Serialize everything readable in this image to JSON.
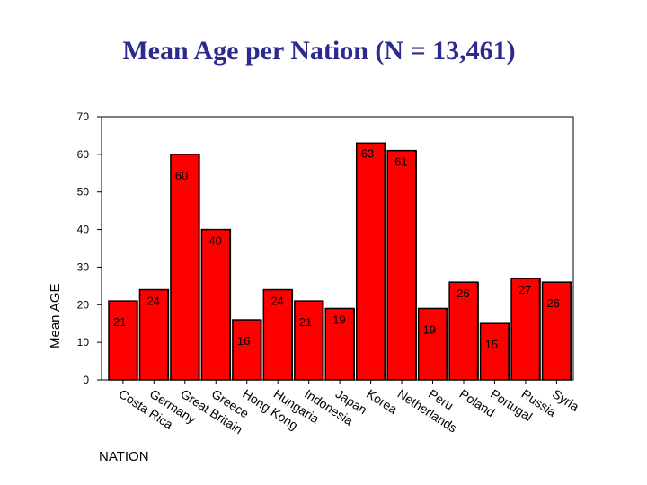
{
  "title": "Mean Age per Nation (N = 13,461)",
  "colors": {
    "bar": "#ff0000",
    "bar_stroke": "#000000",
    "title": "#2b2b8f"
  },
  "chart_data": {
    "type": "bar",
    "title": "Mean Age per Nation (N = 13,461)",
    "xlabel": "NATION",
    "ylabel": "Mean AGE",
    "ylim": [
      0,
      70
    ],
    "yticks": [
      0,
      10,
      20,
      30,
      40,
      50,
      60,
      70
    ],
    "categories": [
      "Costa Rica",
      "Germany",
      "Great Britain",
      "Greece",
      "Hong Kong",
      "Hungaria",
      "Indonesia",
      "Japan",
      "Korea",
      "Netherlands",
      "Peru",
      "Poland",
      "Portugal",
      "Russia",
      "Syria"
    ],
    "values": [
      21,
      24,
      60,
      40,
      16,
      24,
      21,
      19,
      63,
      61,
      19,
      26,
      15,
      27,
      26
    ],
    "data_labels": [
      "21",
      "24",
      "60",
      "40",
      "16",
      "24",
      "21",
      "19",
      "63",
      "61",
      "19",
      "26",
      "15",
      "27",
      "26"
    ],
    "grid": false,
    "legend": "none"
  }
}
